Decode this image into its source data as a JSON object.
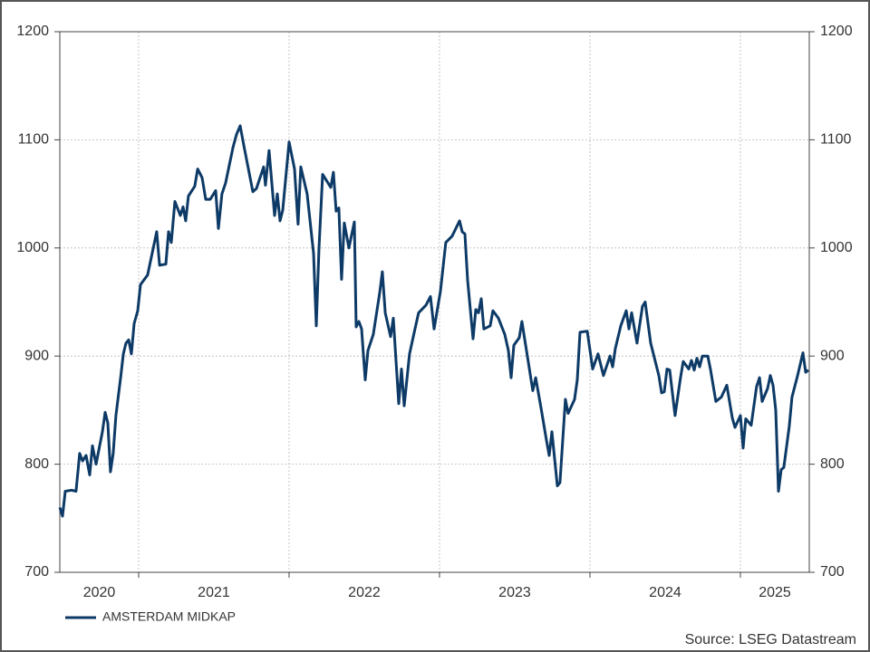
{
  "chart_data": {
    "type": "line",
    "source": "Source: LSEG Datastream",
    "xlim": [
      2020.476,
      2025.458
    ],
    "xticks": [
      2020,
      2021,
      2022,
      2023,
      2024,
      2025
    ],
    "ylim": [
      700,
      1200
    ],
    "yticks": [
      700,
      800,
      900,
      1000,
      1100,
      1200
    ],
    "grid": true,
    "legend": "bottom-left",
    "x": [
      2020.476,
      2020.494,
      2020.512,
      2020.554,
      2020.584,
      2020.608,
      2020.627,
      2020.651,
      2020.675,
      2020.693,
      2020.717,
      2020.759,
      2020.777,
      2020.795,
      2020.813,
      2020.831,
      2020.849,
      2020.88,
      2020.898,
      2020.916,
      2020.934,
      2020.952,
      2020.97,
      2020.994,
      2021.012,
      2021.06,
      2021.102,
      2021.12,
      2021.139,
      2021.181,
      2021.199,
      2021.217,
      2021.241,
      2021.277,
      2021.295,
      2021.313,
      2021.331,
      2021.373,
      2021.392,
      2021.422,
      2021.446,
      2021.476,
      2021.512,
      2021.53,
      2021.554,
      2021.578,
      2021.627,
      2021.651,
      2021.675,
      2021.699,
      2021.759,
      2021.783,
      2021.831,
      2021.843,
      2021.867,
      2021.904,
      2021.922,
      2021.94,
      2021.958,
      2022.0,
      2022.036,
      2022.06,
      2022.078,
      2022.12,
      2022.163,
      2022.181,
      2022.199,
      2022.223,
      2022.277,
      2022.295,
      2022.313,
      2022.331,
      2022.349,
      2022.367,
      2022.398,
      2022.434,
      2022.446,
      2022.464,
      2022.482,
      2022.506,
      2022.524,
      2022.56,
      2022.602,
      2022.62,
      2022.639,
      2022.675,
      2022.693,
      2022.729,
      2022.747,
      2022.765,
      2022.801,
      2022.837,
      2022.861,
      2022.91,
      2022.94,
      2022.964,
      2023.006,
      2023.042,
      2023.084,
      2023.133,
      2023.151,
      2023.169,
      2023.187,
      2023.223,
      2023.241,
      2023.259,
      2023.277,
      2023.295,
      2023.337,
      2023.355,
      2023.392,
      2023.434,
      2023.458,
      2023.476,
      2023.494,
      2023.53,
      2023.548,
      2023.584,
      2023.62,
      2023.639,
      2023.675,
      2023.711,
      2023.729,
      2023.747,
      2023.783,
      2023.801,
      2023.837,
      2023.855,
      2023.898,
      2023.916,
      2023.934,
      2023.982,
      2024.018,
      2024.054,
      2024.09,
      2024.133,
      2024.151,
      2024.169,
      2024.205,
      2024.241,
      2024.259,
      2024.277,
      2024.313,
      2024.349,
      2024.367,
      2024.404,
      2024.458,
      2024.476,
      2024.494,
      2024.512,
      2024.53,
      2024.566,
      2024.602,
      2024.62,
      2024.657,
      2024.675,
      2024.693,
      2024.711,
      2024.729,
      2024.747,
      2024.783,
      2024.801,
      2024.837,
      2024.873,
      2024.91,
      2024.946,
      2024.964,
      2025.0,
      2025.018,
      2025.036,
      2025.072,
      2025.108,
      2025.127,
      2025.145,
      2025.181,
      2025.199,
      2025.217,
      2025.235,
      2025.253,
      2025.271,
      2025.289,
      2025.325,
      2025.343,
      2025.38,
      2025.416,
      2025.434,
      2025.452
    ],
    "series": [
      {
        "name": "AMSTERDAM MIDKAP",
        "color": "#0d3a66",
        "values": [
          760,
          752,
          775,
          776,
          775,
          810,
          803,
          808,
          790,
          817,
          800,
          830,
          848,
          838,
          793,
          810,
          845,
          880,
          902,
          912,
          915,
          902,
          930,
          942,
          966,
          975,
          1003,
          1015,
          984,
          985,
          1015,
          1005,
          1043,
          1030,
          1038,
          1025,
          1048,
          1057,
          1073,
          1065,
          1045,
          1045,
          1053,
          1018,
          1050,
          1060,
          1093,
          1105,
          1113,
          1095,
          1052,
          1055,
          1075,
          1058,
          1090,
          1030,
          1050,
          1025,
          1035,
          1098,
          1073,
          1022,
          1075,
          1050,
          995,
          928,
          1000,
          1068,
          1056,
          1070,
          1034,
          1037,
          971,
          1023,
          1000,
          1024,
          927,
          932,
          925,
          878,
          905,
          920,
          958,
          978,
          940,
          918,
          935,
          856,
          888,
          854,
          902,
          925,
          940,
          947,
          955,
          925,
          960,
          1005,
          1011,
          1025,
          1015,
          1013,
          970,
          916,
          943,
          940,
          953,
          925,
          928,
          942,
          935,
          920,
          905,
          880,
          910,
          917,
          932,
          900,
          868,
          880,
          852,
          822,
          808,
          830,
          780,
          783,
          860,
          847,
          860,
          878,
          922,
          923,
          888,
          902,
          882,
          900,
          890,
          907,
          928,
          942,
          925,
          940,
          912,
          946,
          950,
          912,
          882,
          866,
          867,
          888,
          887,
          845,
          880,
          895,
          888,
          896,
          887,
          898,
          890,
          900,
          900,
          888,
          858,
          862,
          873,
          843,
          834,
          845,
          815,
          842,
          836,
          872,
          880,
          858,
          870,
          882,
          873,
          850,
          775,
          795,
          797,
          835,
          862,
          882,
          903,
          885,
          887
        ]
      }
    ]
  }
}
